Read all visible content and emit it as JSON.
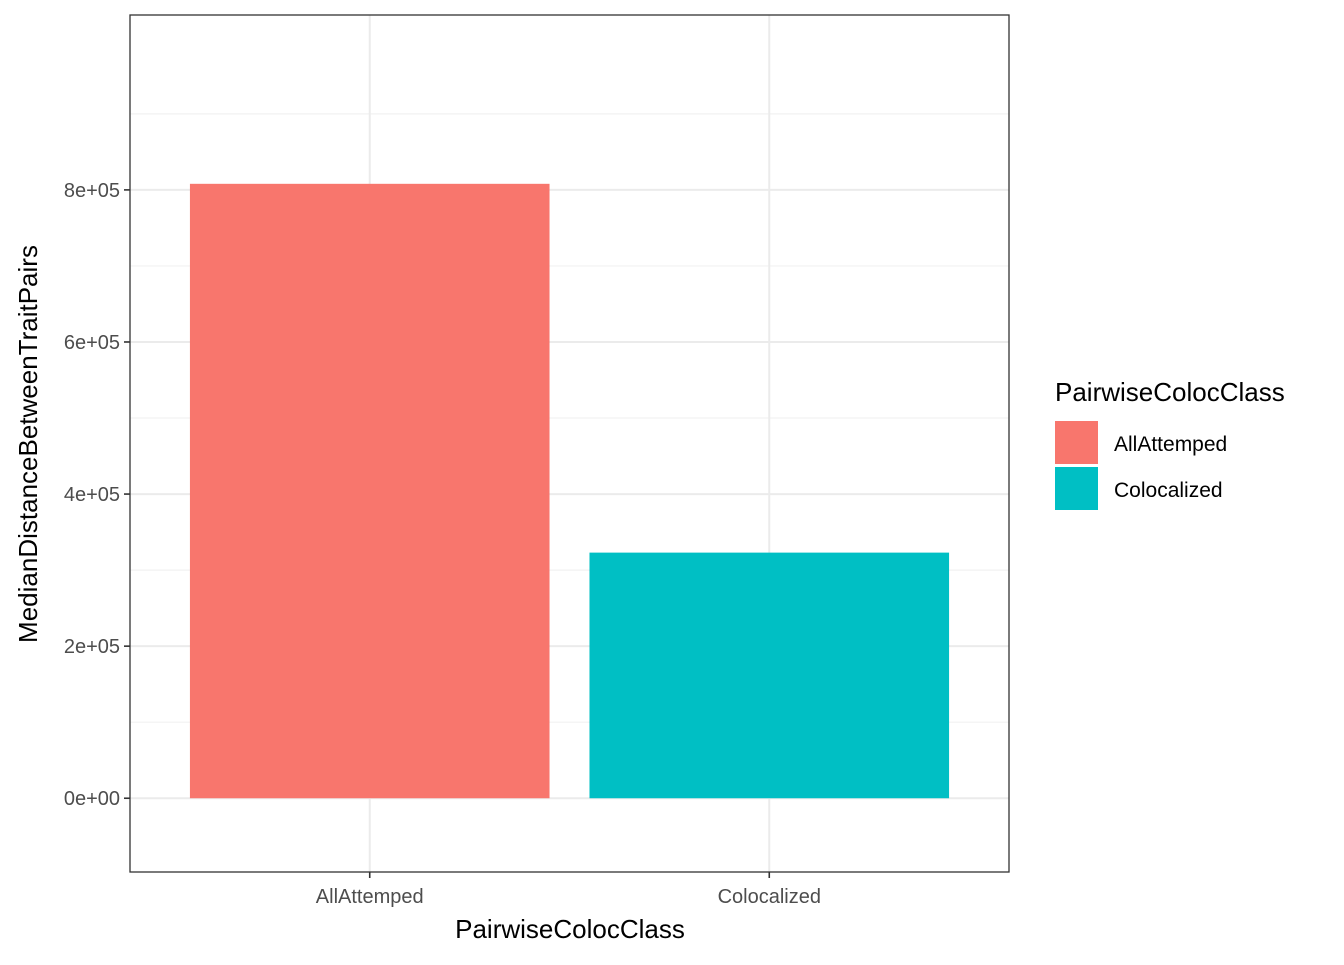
{
  "chart_data": {
    "type": "bar",
    "categories": [
      "AllAttemped",
      "Colocalized"
    ],
    "values": [
      808000,
      323000
    ],
    "colors": [
      "#F8766D",
      "#00BFC4"
    ],
    "xlabel": "PairwiseColocClass",
    "ylabel": "MedianDistanceBetweenTraitPairs",
    "ylim": [
      -97000,
      1030000
    ],
    "yticks": [
      0,
      200000,
      400000,
      600000,
      800000
    ],
    "ytick_labels": [
      "0e+00",
      "2e+05",
      "4e+05",
      "6e+05",
      "8e+05"
    ],
    "grid": true,
    "theme": "bw",
    "legend": {
      "title": "PairwiseColocClass",
      "position": "right",
      "entries": [
        "AllAttemped",
        "Colocalized"
      ]
    }
  }
}
